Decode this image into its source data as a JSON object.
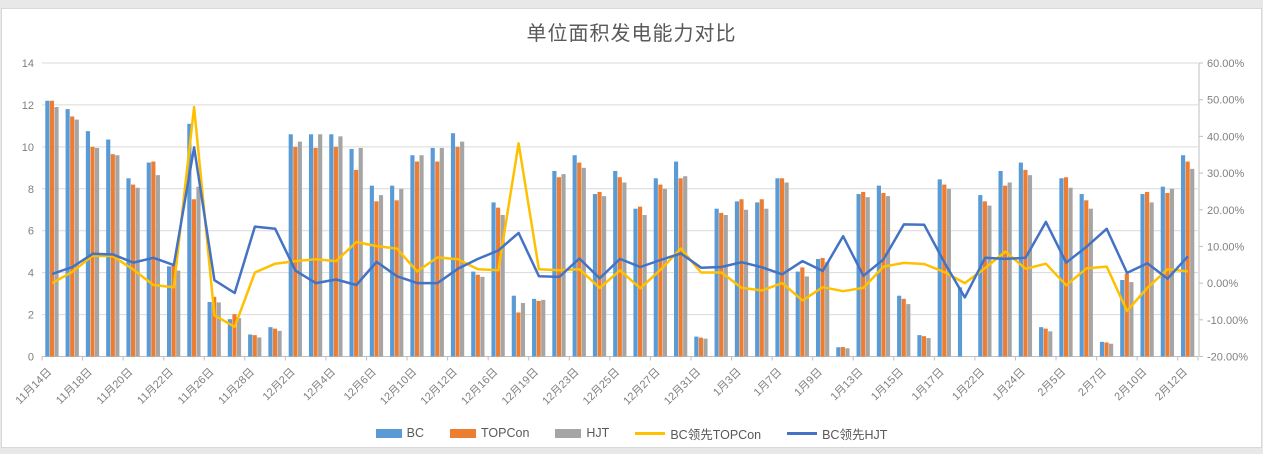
{
  "page": {
    "background": "#e8e8e8",
    "card_border": "#d9d9d9"
  },
  "chart_data": {
    "type": "bar",
    "subtype": "combo-bar-line-dual-axis",
    "title": "单位面积发电能力对比",
    "grid": true,
    "legend_position": "bottom",
    "categories": [
      "11月14日",
      "",
      "11月18日",
      "",
      "11月20日",
      "",
      "11月22日",
      "",
      "11月26日",
      "",
      "11月28日",
      "",
      "12月2日",
      "",
      "12月4日",
      "",
      "12月6日",
      "",
      "12月10日",
      "",
      "12月12日",
      "",
      "12月16日",
      "",
      "12月19日",
      "",
      "12月23日",
      "",
      "12月25日",
      "",
      "12月27日",
      "",
      "12月31日",
      "",
      "1月3日",
      "",
      "1月7日",
      "",
      "1月9日",
      "",
      "1月13日",
      "",
      "1月15日",
      "",
      "1月17日",
      "",
      "1月22日",
      "",
      "1月24日",
      "",
      "2月5日",
      "",
      "2月7日",
      "",
      "2月10日",
      "",
      "2月12日"
    ],
    "left_axis": {
      "min": 0,
      "max": 14,
      "step": 2,
      "ticks": [
        "0",
        "2",
        "4",
        "6",
        "8",
        "10",
        "12",
        "14"
      ]
    },
    "right_axis": {
      "min": -20,
      "max": 60,
      "step": 10,
      "ticks": [
        "60.00%",
        "50.00%",
        "40.00%",
        "30.00%",
        "20.00%",
        "10.00%",
        "0.00%",
        "-10.00%",
        "-20.00%"
      ]
    },
    "series": [
      {
        "name": "BC",
        "type": "bar",
        "axis": "left",
        "color": "#5B9BD5",
        "values": [
          12.2,
          11.8,
          10.75,
          10.35,
          8.5,
          9.25,
          4.3,
          11.1,
          2.6,
          1.78,
          1.05,
          1.4,
          10.6,
          10.6,
          10.6,
          9.9,
          8.15,
          8.15,
          9.6,
          9.95,
          10.65,
          4.05,
          7.35,
          2.9,
          2.75,
          8.85,
          9.6,
          7.75,
          8.85,
          7.05,
          8.5,
          9.3,
          0.95,
          7.05,
          7.4,
          7.35,
          8.5,
          4.05,
          4.65,
          0.44,
          7.75,
          8.15,
          2.9,
          1.02,
          8.45,
          3.3,
          7.7,
          8.85,
          9.25,
          1.4,
          8.5,
          7.75,
          0.7,
          3.65,
          7.75,
          8.1,
          9.6
        ]
      },
      {
        "name": "TOPCon",
        "type": "bar",
        "axis": "left",
        "color": "#ED7D31",
        "values": [
          12.2,
          11.45,
          10.0,
          9.65,
          8.2,
          9.3,
          4.35,
          7.5,
          2.85,
          2.02,
          1.02,
          1.33,
          10.0,
          9.95,
          10.0,
          8.9,
          7.4,
          7.45,
          9.3,
          9.3,
          10.0,
          3.9,
          7.1,
          2.1,
          2.65,
          8.55,
          9.25,
          7.85,
          8.55,
          7.15,
          8.2,
          8.5,
          0.9,
          6.85,
          7.5,
          7.5,
          8.5,
          4.25,
          4.7,
          0.45,
          7.85,
          7.8,
          2.75,
          0.97,
          8.2,
          null,
          7.4,
          8.15,
          8.9,
          1.33,
          8.55,
          7.45,
          0.67,
          3.95,
          7.85,
          7.8,
          9.3
        ]
      },
      {
        "name": "HJT",
        "type": "bar",
        "axis": "left",
        "color": "#A5A5A5",
        "values": [
          11.9,
          11.3,
          9.95,
          9.6,
          8.05,
          8.65,
          4.1,
          8.1,
          2.58,
          1.83,
          0.91,
          1.22,
          10.25,
          10.6,
          10.5,
          9.95,
          7.7,
          8.0,
          9.6,
          9.95,
          10.25,
          3.8,
          6.75,
          2.55,
          2.7,
          8.7,
          9.0,
          7.65,
          8.3,
          6.75,
          8.0,
          8.6,
          0.85,
          6.75,
          7.0,
          7.05,
          8.3,
          3.82,
          4.5,
          0.39,
          7.6,
          7.65,
          2.5,
          0.88,
          8.0,
          null,
          7.2,
          8.3,
          8.65,
          1.2,
          8.05,
          7.05,
          0.61,
          3.55,
          7.35,
          8.0,
          8.95
        ]
      },
      {
        "name": "BC领先TOPCon",
        "type": "line",
        "axis": "right",
        "color": "#FFC000",
        "values": [
          0.0,
          3.1,
          7.5,
          7.3,
          3.7,
          -0.5,
          -1.1,
          48.0,
          -8.8,
          -11.9,
          2.9,
          5.3,
          6.0,
          6.5,
          6.0,
          11.2,
          10.1,
          9.4,
          3.2,
          7.0,
          6.5,
          3.8,
          3.5,
          38.1,
          3.8,
          3.5,
          3.8,
          -1.3,
          3.5,
          -1.4,
          3.7,
          9.4,
          2.9,
          2.9,
          -1.3,
          -2.0,
          0.0,
          -4.7,
          -1.1,
          -2.2,
          -1.3,
          4.5,
          5.5,
          5.2,
          3.0,
          0.0,
          4.1,
          8.6,
          3.9,
          5.3,
          -0.6,
          4.0,
          4.5,
          -7.6,
          -1.3,
          3.8,
          3.2
        ]
      },
      {
        "name": "BC领先HJT",
        "type": "line",
        "axis": "right",
        "color": "#4472C4",
        "values": [
          2.5,
          4.4,
          8.0,
          7.8,
          5.6,
          6.9,
          4.9,
          37.0,
          0.8,
          -2.7,
          15.4,
          14.8,
          3.4,
          0.0,
          1.0,
          -0.5,
          5.8,
          1.9,
          0.0,
          0.0,
          3.9,
          6.6,
          8.9,
          13.7,
          1.9,
          1.7,
          6.7,
          1.3,
          6.6,
          4.4,
          6.3,
          8.1,
          4.2,
          4.4,
          5.7,
          4.3,
          2.4,
          6.0,
          3.3,
          12.8,
          2.0,
          6.5,
          16.0,
          15.9,
          5.6,
          -3.9,
          6.9,
          6.6,
          6.9,
          16.7,
          5.6,
          9.9,
          14.8,
          2.8,
          5.4,
          1.2,
          7.3
        ]
      }
    ],
    "legend": [
      "BC",
      "TOPCon",
      "HJT",
      "BC领先TOPCon",
      "BC领先HJT"
    ],
    "colors": {
      "grid": "#d9d9d9",
      "axis_line": "#bfbfbf",
      "tick_label": "#808080",
      "title": "#595959"
    }
  }
}
